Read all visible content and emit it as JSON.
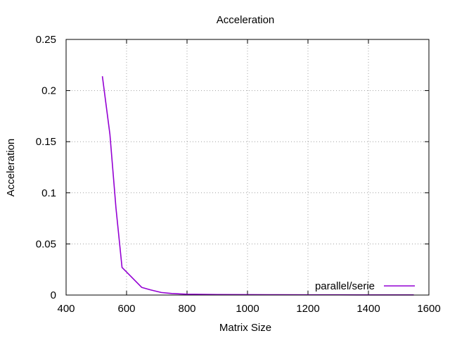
{
  "chart_data": {
    "type": "line",
    "title": "Acceleration",
    "xlabel": "Matrix Size",
    "ylabel": "Acceleration",
    "xlim": [
      400,
      1600
    ],
    "ylim": [
      0,
      0.25
    ],
    "x_ticks": [
      400,
      600,
      800,
      1000,
      1200,
      1400,
      1600
    ],
    "x_tick_labels": [
      "400",
      "600",
      "800",
      "1000",
      "1200",
      "1400",
      "1600"
    ],
    "y_ticks": [
      0,
      0.05,
      0.1,
      0.15,
      0.2,
      0.25
    ],
    "y_tick_labels": [
      "0",
      "0.05",
      "0.1",
      "0.15",
      "0.2",
      "0.25"
    ],
    "grid": true,
    "legend_position": "bottom-right",
    "series": [
      {
        "name": "parallel/serie",
        "color": "#9400d3",
        "x": [
          520,
          545,
          565,
          585,
          615,
          650,
          680,
          715,
          750,
          800,
          900,
          1000,
          1100,
          1200,
          1300,
          1400,
          1500,
          1550
        ],
        "y": [
          0.214,
          0.157,
          0.085,
          0.027,
          0.018,
          0.0075,
          0.005,
          0.0025,
          0.0015,
          0.0008,
          0.0005,
          0.0004,
          0.0003,
          0.0002,
          0.0002,
          0.0001,
          0.0001,
          0.0001
        ]
      }
    ]
  }
}
